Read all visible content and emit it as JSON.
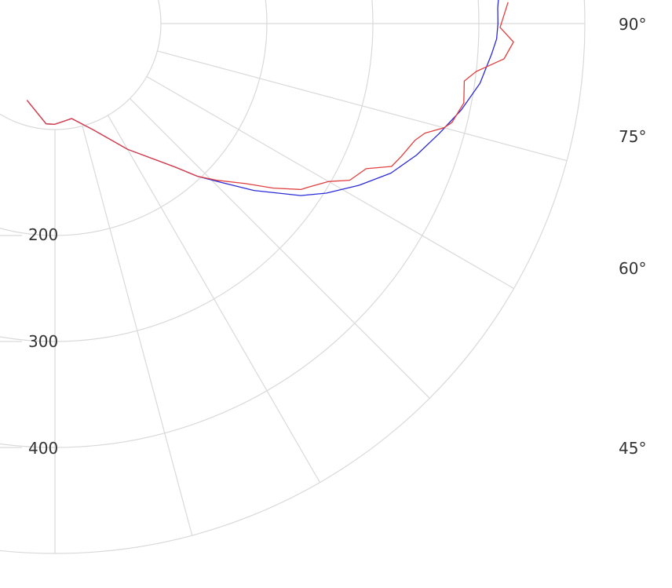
{
  "chart_data": {
    "type": "polar-line",
    "title": "",
    "radial_axis": {
      "min": 0,
      "max": 500,
      "tick_labels": [
        "200",
        "300",
        "400"
      ]
    },
    "angular_axis": {
      "unit": "degrees",
      "tick_labels": [
        "90°",
        "75°",
        "60°",
        "45°"
      ],
      "gridline_angles": [
        0,
        15,
        30,
        45,
        60,
        75,
        90
      ]
    },
    "grid": true,
    "legend": "none",
    "series": [
      {
        "color": "#2b2bd8",
        "points": [
          [
            -20,
            77
          ],
          [
            -5,
            95
          ],
          [
            0,
            95
          ],
          [
            10,
            91
          ],
          [
            20,
            107
          ],
          [
            30,
            137
          ],
          [
            40,
            177
          ],
          [
            43,
            197
          ],
          [
            46,
            215
          ],
          [
            50,
            245
          ],
          [
            55,
            283
          ],
          [
            58,
            302
          ],
          [
            62,
            325
          ],
          [
            66,
            347
          ],
          [
            70,
            363
          ],
          [
            74,
            377
          ],
          [
            78,
            392
          ],
          [
            82,
            405
          ],
          [
            86,
            413
          ],
          [
            88,
            417
          ],
          [
            90,
            418
          ],
          [
            92,
            418
          ],
          [
            94,
            420
          ]
        ]
      },
      {
        "color": "#e04040",
        "points": [
          [
            -20,
            77
          ],
          [
            -5,
            95
          ],
          [
            0,
            95
          ],
          [
            10,
            91
          ],
          [
            20,
            107
          ],
          [
            30,
            137
          ],
          [
            40,
            177
          ],
          [
            43,
            197
          ],
          [
            46,
            213
          ],
          [
            50,
            235
          ],
          [
            53,
            258
          ],
          [
            56,
            280
          ],
          [
            57,
            284
          ],
          [
            60,
            298
          ],
          [
            62,
            315
          ],
          [
            65,
            324
          ],
          [
            67,
            345
          ],
          [
            69,
            350
          ],
          [
            72,
            357
          ],
          [
            73.5,
            364
          ],
          [
            75,
            380
          ],
          [
            76,
            386
          ],
          [
            79,
            393
          ],
          [
            82,
            390
          ],
          [
            83.5,
            400
          ],
          [
            85.5,
            425
          ],
          [
            87.7,
            433
          ],
          [
            89.5,
            420
          ],
          [
            92.7,
            428
          ]
        ]
      }
    ]
  }
}
